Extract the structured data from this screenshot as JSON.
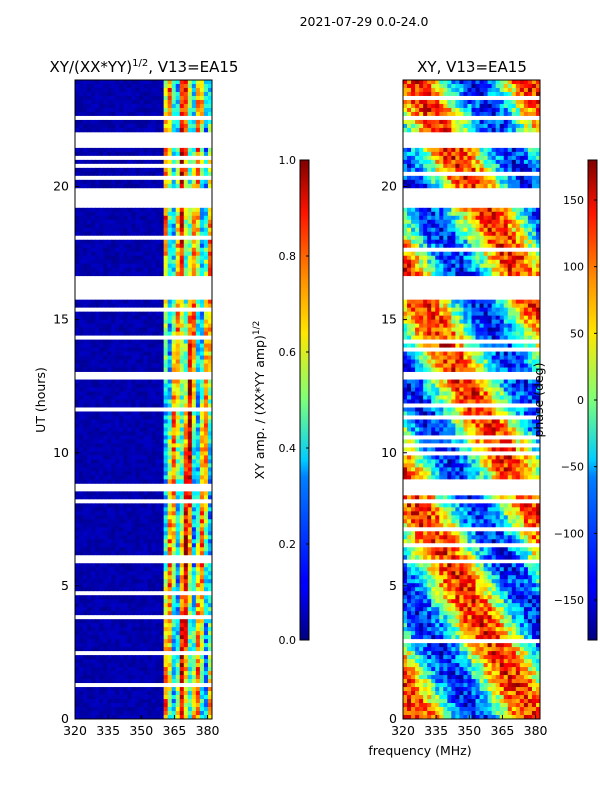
{
  "figure_title": "2021-07-29 0.0-24.0",
  "chart_data": [
    {
      "type": "heatmap",
      "title_main": "XY/(XX*YY)",
      "title_sup": "1/2",
      "title_tail": ", V13=EA15",
      "xlabel": "",
      "ylabel": "UT (hours)",
      "xlim": [
        320,
        382
      ],
      "ylim": [
        0,
        24
      ],
      "x_ticks": [
        320,
        335,
        350,
        365,
        380
      ],
      "y_ticks": [
        0,
        5,
        10,
        15,
        20
      ],
      "mode": "amplitude",
      "colorbar": {
        "label_main": "XY amp. / (XX*YY amp)",
        "label_sup": "1/2",
        "range": [
          0.0,
          1.0
        ],
        "ticks": [
          "0.0",
          "0.2",
          "0.4",
          "0.6",
          "0.8",
          "1.0"
        ],
        "tick_values": [
          0.0,
          0.2,
          0.4,
          0.6,
          0.8,
          1.0
        ]
      },
      "flagged_hours": [
        [
          21.4,
          22.0
        ],
        [
          19.2,
          20.0
        ],
        [
          15.7,
          16.6
        ],
        [
          12.8,
          13.0
        ],
        [
          8.6,
          8.8
        ],
        [
          5.9,
          6.05
        ]
      ]
    },
    {
      "type": "heatmap",
      "title_main": "XY, V13=EA15",
      "xlabel": "frequency (MHz)",
      "ylabel": "",
      "xlim": [
        320,
        382
      ],
      "ylim": [
        0,
        24
      ],
      "x_ticks": [
        320,
        335,
        350,
        365,
        380
      ],
      "y_ticks": [
        0,
        5,
        10,
        15,
        20
      ],
      "mode": "phase",
      "colorbar": {
        "label_main": "phase (deg)",
        "range": [
          -180,
          180
        ],
        "ticks": [
          "−150",
          "−100",
          "−50",
          "0",
          "50",
          "100",
          "150"
        ],
        "tick_values": [
          -150,
          -100,
          -50,
          0,
          50,
          100,
          150
        ]
      },
      "flagged_hours": [
        [
          21.4,
          22.0
        ],
        [
          19.2,
          20.0
        ],
        [
          15.7,
          16.6
        ],
        [
          12.8,
          13.0
        ],
        [
          8.6,
          8.8
        ],
        [
          5.9,
          6.05
        ]
      ]
    }
  ]
}
